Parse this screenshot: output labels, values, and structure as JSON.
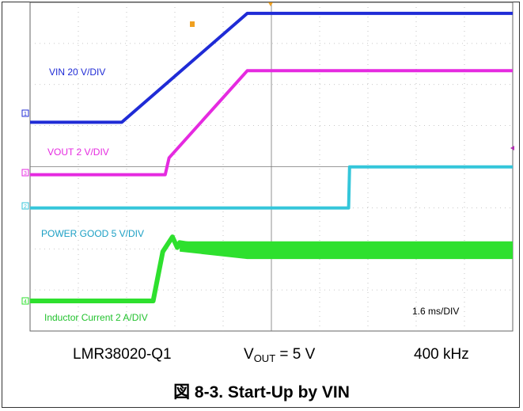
{
  "chart_data": {
    "type": "line",
    "time_scale": "1.6 ms/DIV",
    "series": [
      {
        "name": "VIN",
        "label": "VIN  20 V/DIV",
        "channel": "1",
        "color": "#1f2bd6",
        "x": [
          0,
          1.9,
          4.5,
          10
        ],
        "y": [
          -0.22,
          -0.22,
          2.43,
          2.43
        ]
      },
      {
        "name": "VOUT",
        "label": "VOUT  2 V/DIV",
        "channel": "3",
        "color": "#e52ae0",
        "x": [
          0,
          2.8,
          2.88,
          4.5,
          10
        ],
        "y": [
          -0.05,
          -0.05,
          0.36,
          2.48,
          2.48
        ]
      },
      {
        "name": "POWER GOOD",
        "label": "POWER GOOD  5 V/DIV",
        "channel": "2",
        "color": "#34c6da",
        "x": [
          0,
          6.6,
          6.62,
          10
        ],
        "y": [
          -0.05,
          -0.05,
          0.95,
          0.95
        ]
      },
      {
        "name": "Inductor Current",
        "label": "Inductor Current  2 A/DIV",
        "channel": "4",
        "color": "#2ee02e",
        "x": [
          0,
          2.55,
          2.75,
          2.95,
          3.05,
          3.1,
          4.5,
          10
        ],
        "y": [
          0,
          0,
          1.2,
          1.56,
          1.3,
          1.42,
          1.16,
          1.16
        ]
      }
    ],
    "xlim": [
      0,
      10
    ],
    "grid": true
  },
  "caption": {
    "part": "LMR38020-Q1",
    "vout_prefix": "V",
    "vout_sub": "OUT",
    "vout_value": " = 5 V",
    "freq": "400 kHz"
  },
  "figure_title": "図 8-3. Start-Up by VIN"
}
